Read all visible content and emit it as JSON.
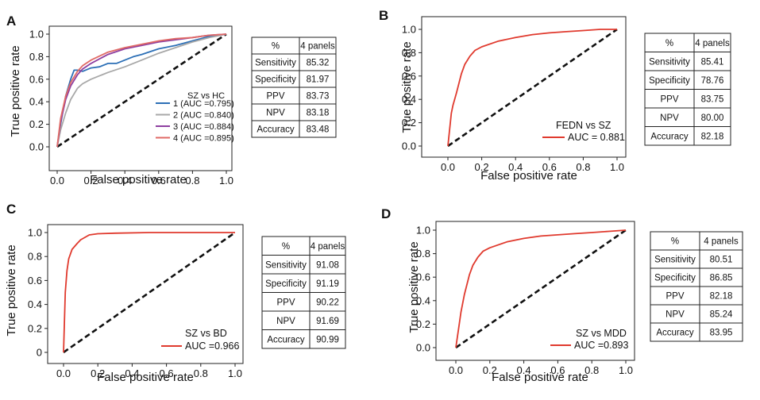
{
  "figure": {
    "panel_letters": [
      "A",
      "B",
      "C",
      "D"
    ]
  },
  "chart_data": [
    {
      "type": "line",
      "panel": "A",
      "xlabel": "False positive rate",
      "ylabel": "True positive rate",
      "xticks": [
        "0.0",
        "0.2",
        "0.4",
        "0.6",
        "0.8",
        "1.0"
      ],
      "yticks": [
        "0.0",
        "0.2",
        "0.4",
        "0.6",
        "0.8",
        "1.0"
      ],
      "xlim": [
        0,
        1
      ],
      "ylim": [
        0,
        1
      ],
      "legend_title": "SZ vs HC",
      "series": [
        {
          "name": "1 (AUC =0.795)",
          "color": "#2c6fb6",
          "x": [
            0,
            0.02,
            0.05,
            0.08,
            0.1,
            0.12,
            0.15,
            0.2,
            0.25,
            0.3,
            0.35,
            0.4,
            0.45,
            0.5,
            0.6,
            0.7,
            0.8,
            0.9,
            1.0
          ],
          "y": [
            0,
            0.2,
            0.45,
            0.6,
            0.68,
            0.68,
            0.67,
            0.7,
            0.71,
            0.74,
            0.74,
            0.77,
            0.8,
            0.82,
            0.87,
            0.9,
            0.94,
            0.98,
            1.0
          ]
        },
        {
          "name": "2 (AUC =0.840)",
          "color": "#a8a8a8",
          "x": [
            0,
            0.02,
            0.05,
            0.08,
            0.12,
            0.15,
            0.2,
            0.3,
            0.4,
            0.5,
            0.6,
            0.7,
            0.8,
            0.9,
            1.0
          ],
          "y": [
            0,
            0.15,
            0.3,
            0.42,
            0.52,
            0.56,
            0.6,
            0.66,
            0.71,
            0.77,
            0.83,
            0.88,
            0.93,
            0.97,
            1.0
          ]
        },
        {
          "name": "3 (AUC =0.884)",
          "color": "#8e3fa0",
          "x": [
            0,
            0.02,
            0.05,
            0.08,
            0.12,
            0.15,
            0.2,
            0.3,
            0.4,
            0.5,
            0.6,
            0.7,
            0.8,
            0.9,
            1.0
          ],
          "y": [
            0,
            0.22,
            0.42,
            0.54,
            0.64,
            0.69,
            0.74,
            0.82,
            0.87,
            0.9,
            0.93,
            0.95,
            0.97,
            0.99,
            1.0
          ]
        },
        {
          "name": "4 (AUC =0.895)",
          "color": "#e06a66",
          "x": [
            0,
            0.02,
            0.05,
            0.08,
            0.12,
            0.15,
            0.2,
            0.3,
            0.4,
            0.5,
            0.6,
            0.7,
            0.8,
            0.9,
            1.0
          ],
          "y": [
            0,
            0.25,
            0.45,
            0.57,
            0.67,
            0.72,
            0.77,
            0.84,
            0.88,
            0.91,
            0.94,
            0.96,
            0.97,
            0.99,
            1.0
          ]
        }
      ],
      "diagonal": true,
      "table": {
        "headers": [
          "%",
          "4 panels"
        ],
        "rows": [
          [
            "Sensitivity",
            "85.32"
          ],
          [
            "Specificity",
            "81.97"
          ],
          [
            "PPV",
            "83.73"
          ],
          [
            "NPV",
            "83.18"
          ],
          [
            "Accuracy",
            "83.48"
          ]
        ]
      }
    },
    {
      "type": "line",
      "panel": "B",
      "xlabel": "False positive rate",
      "ylabel": "True positive rate",
      "xticks": [
        "0.0",
        "0.2",
        "0.4",
        "0.6",
        "0.8",
        "1.0"
      ],
      "yticks": [
        "0.0",
        "0.2",
        "0.4",
        "0.6",
        "0.8",
        "1.0"
      ],
      "xlim": [
        0,
        1
      ],
      "ylim": [
        0,
        1
      ],
      "legend_title": "FEDN vs SZ",
      "series": [
        {
          "name": "AUC = 0.881",
          "color": "#e03a2e",
          "x": [
            0,
            0.02,
            0.03,
            0.05,
            0.08,
            0.1,
            0.13,
            0.16,
            0.2,
            0.3,
            0.4,
            0.5,
            0.6,
            0.7,
            0.8,
            0.9,
            1.0
          ],
          "y": [
            0,
            0.28,
            0.35,
            0.45,
            0.62,
            0.7,
            0.77,
            0.82,
            0.85,
            0.9,
            0.93,
            0.955,
            0.97,
            0.98,
            0.99,
            1.0,
            1.0
          ]
        }
      ],
      "diagonal": true,
      "table": {
        "headers": [
          "%",
          "4 panels"
        ],
        "rows": [
          [
            "Sensitivity",
            "85.41"
          ],
          [
            "Specificity",
            "78.76"
          ],
          [
            "PPV",
            "83.75"
          ],
          [
            "NPV",
            "80.00"
          ],
          [
            "Accuracy",
            "82.18"
          ]
        ]
      }
    },
    {
      "type": "line",
      "panel": "C",
      "xlabel": "False positive rate",
      "ylabel": "True positive rate",
      "xticks": [
        "0.0",
        "0.2",
        "0.4",
        "0.6",
        "0.8",
        "1.0"
      ],
      "yticks": [
        "0",
        "0.2",
        "0.4",
        "0.6",
        "0.8",
        "1.0"
      ],
      "xlim": [
        0,
        1
      ],
      "ylim": [
        0,
        1
      ],
      "legend_title": "SZ vs BD",
      "series": [
        {
          "name": "AUC =0.966",
          "color": "#e03a2e",
          "x": [
            0,
            0.01,
            0.02,
            0.03,
            0.05,
            0.08,
            0.1,
            0.15,
            0.2,
            0.3,
            0.5,
            0.7,
            1.0
          ],
          "y": [
            0,
            0.5,
            0.68,
            0.78,
            0.86,
            0.91,
            0.94,
            0.98,
            0.99,
            0.995,
            1.0,
            1.0,
            1.0
          ]
        }
      ],
      "diagonal": true,
      "table": {
        "headers": [
          "%",
          "4 panels"
        ],
        "rows": [
          [
            "Sensitivity",
            "91.08"
          ],
          [
            "Specificity",
            "91.19"
          ],
          [
            "PPV",
            "90.22"
          ],
          [
            "NPV",
            "91.69"
          ],
          [
            "Accuracy",
            "90.99"
          ]
        ]
      }
    },
    {
      "type": "line",
      "panel": "D",
      "xlabel": "False positive rate",
      "ylabel": "True positive rate",
      "xticks": [
        "0.0",
        "0.2",
        "0.4",
        "0.6",
        "0.8",
        "1.0"
      ],
      "yticks": [
        "0.0",
        "0.2",
        "0.4",
        "0.6",
        "0.8",
        "1.0"
      ],
      "xlim": [
        0,
        1
      ],
      "ylim": [
        0,
        1
      ],
      "legend_title": "SZ vs MDD",
      "series": [
        {
          "name": "AUC =0.893",
          "color": "#e03a2e",
          "x": [
            0,
            0.02,
            0.03,
            0.05,
            0.08,
            0.1,
            0.13,
            0.16,
            0.2,
            0.3,
            0.4,
            0.5,
            0.6,
            0.7,
            0.8,
            0.9,
            1.0
          ],
          "y": [
            0,
            0.2,
            0.3,
            0.45,
            0.62,
            0.7,
            0.77,
            0.82,
            0.85,
            0.9,
            0.93,
            0.95,
            0.96,
            0.97,
            0.98,
            0.99,
            1.0
          ]
        }
      ],
      "diagonal": true,
      "table": {
        "headers": [
          "%",
          "4 panels"
        ],
        "rows": [
          [
            "Sensitivity",
            "80.51"
          ],
          [
            "Specificity",
            "86.85"
          ],
          [
            "PPV",
            "82.18"
          ],
          [
            "NPV",
            "85.24"
          ],
          [
            "Accuracy",
            "83.95"
          ]
        ]
      }
    }
  ]
}
